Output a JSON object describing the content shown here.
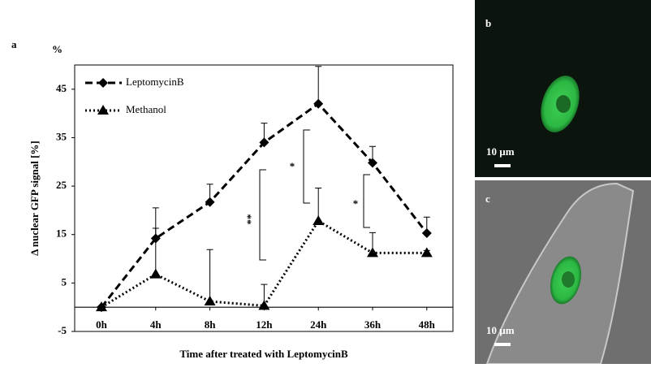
{
  "panel_labels": {
    "a": "a",
    "b": "b",
    "c": "c"
  },
  "scale_bars": {
    "b": "10 µm",
    "c": "10 µm"
  },
  "chart_data": {
    "type": "line",
    "unit_label": "%",
    "y_label": "Δ nuclear GFP signal [%]",
    "x_label": "Time after treated with  LeptomycinB",
    "categories": [
      "0h",
      "4h",
      "8h",
      "12h",
      "24h",
      "36h",
      "48h"
    ],
    "series": [
      {
        "name": "LeptomycinB",
        "color": "#000000",
        "marker": "diamond",
        "dash": "dashed",
        "values": [
          0,
          14.2,
          21.7,
          34,
          42,
          29.8,
          15.3
        ],
        "errors": [
          0,
          6.3,
          3.7,
          4,
          7.7,
          3.4,
          3.3
        ]
      },
      {
        "name": "Methanol",
        "color": "#000000",
        "marker": "triangle",
        "dash": "dotted",
        "values": [
          0,
          6.8,
          1.2,
          0.3,
          17.8,
          11.2,
          11.2
        ],
        "errors": [
          0,
          9.5,
          10.7,
          4.4,
          6.8,
          4.2,
          0.5
        ]
      }
    ],
    "annotations": [
      "**",
      "*",
      "*"
    ],
    "ylim": [
      -5,
      50
    ],
    "yticks": [
      -5,
      5,
      15,
      25,
      35,
      45
    ],
    "zero_line": true,
    "legend": "upper left"
  }
}
